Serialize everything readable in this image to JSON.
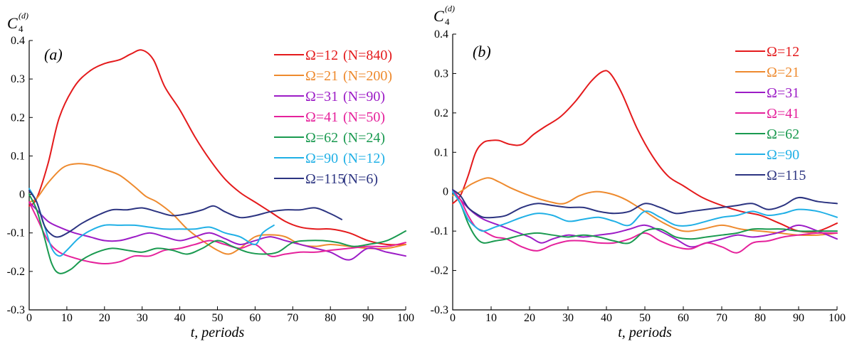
{
  "chart_data": [
    {
      "type": "line",
      "panel_label": "(a)",
      "ylabel": {
        "main": "C",
        "sub": "4",
        "sup": "(d)"
      },
      "xlabel": "t, periods",
      "xlim": [
        0,
        100
      ],
      "ylim": [
        -0.3,
        0.4
      ],
      "xticks": [
        "0",
        "10",
        "20",
        "30",
        "40",
        "50",
        "60",
        "70",
        "80",
        "90",
        "100"
      ],
      "yticks": [
        "-0.3",
        "-0.2",
        "-0.1",
        "0",
        "0.1",
        "0.2",
        "0.3",
        "0.4"
      ],
      "grid": false,
      "legend": "top-right",
      "series": [
        {
          "name": "Ω=12",
          "extra": "(N=840)",
          "color": "#e41a1c",
          "x": [
            0,
            2,
            5,
            8,
            12,
            16,
            20,
            24,
            27,
            30,
            33,
            36,
            40,
            44,
            48,
            52,
            56,
            60,
            64,
            68,
            72,
            76,
            80,
            85,
            90,
            95,
            100
          ],
          "y": [
            -0.03,
            -0.01,
            0.08,
            0.2,
            0.28,
            0.32,
            0.34,
            0.35,
            0.365,
            0.375,
            0.35,
            0.28,
            0.22,
            0.15,
            0.09,
            0.04,
            0.005,
            -0.02,
            -0.045,
            -0.07,
            -0.085,
            -0.09,
            -0.09,
            -0.1,
            -0.12,
            -0.13,
            -0.13
          ]
        },
        {
          "name": "Ω=21",
          "extra": "(N=200)",
          "color": "#ee8a2e",
          "x": [
            0,
            2,
            5,
            9,
            13,
            17,
            20,
            24,
            28,
            31,
            34,
            38,
            42,
            46,
            50,
            53,
            56,
            60,
            64,
            68,
            72,
            76,
            80,
            85,
            90,
            95,
            100
          ],
          "y": [
            -0.02,
            -0.01,
            0.03,
            0.07,
            0.08,
            0.075,
            0.065,
            0.05,
            0.02,
            -0.005,
            -0.02,
            -0.05,
            -0.09,
            -0.12,
            -0.145,
            -0.155,
            -0.14,
            -0.11,
            -0.105,
            -0.11,
            -0.13,
            -0.135,
            -0.13,
            -0.135,
            -0.14,
            -0.14,
            -0.13
          ]
        },
        {
          "name": "Ω=31",
          "extra": "(N=90)",
          "color": "#9c1cc6",
          "x": [
            0,
            2,
            5,
            8,
            12,
            16,
            20,
            24,
            28,
            32,
            36,
            40,
            44,
            48,
            52,
            56,
            60,
            64,
            68,
            72,
            76,
            80,
            85,
            90,
            95,
            100
          ],
          "y": [
            -0.02,
            -0.04,
            -0.07,
            -0.085,
            -0.1,
            -0.11,
            -0.12,
            -0.12,
            -0.11,
            -0.1,
            -0.11,
            -0.12,
            -0.11,
            -0.1,
            -0.115,
            -0.13,
            -0.12,
            -0.11,
            -0.12,
            -0.13,
            -0.14,
            -0.15,
            -0.17,
            -0.14,
            -0.15,
            -0.16
          ]
        },
        {
          "name": "Ω=41",
          "extra": "(N=50)",
          "color": "#e5219b",
          "x": [
            0,
            2,
            5,
            8,
            12,
            16,
            20,
            24,
            28,
            32,
            36,
            40,
            44,
            48,
            52,
            56,
            60,
            64,
            68,
            72,
            76,
            80,
            85,
            90,
            95,
            100
          ],
          "y": [
            -0.02,
            -0.06,
            -0.12,
            -0.15,
            -0.165,
            -0.175,
            -0.18,
            -0.175,
            -0.16,
            -0.16,
            -0.145,
            -0.14,
            -0.13,
            -0.12,
            -0.13,
            -0.14,
            -0.13,
            -0.16,
            -0.155,
            -0.15,
            -0.15,
            -0.145,
            -0.14,
            -0.135,
            -0.135,
            -0.125
          ]
        },
        {
          "name": "Ω=62",
          "extra": "(N=24)",
          "color": "#1a9a50",
          "x": [
            0,
            2,
            4,
            6,
            8,
            11,
            14,
            18,
            22,
            26,
            30,
            34,
            38,
            42,
            46,
            50,
            54,
            58,
            62,
            66,
            70,
            74,
            78,
            82,
            86,
            90,
            95,
            100
          ],
          "y": [
            0.0,
            -0.04,
            -0.11,
            -0.18,
            -0.205,
            -0.195,
            -0.17,
            -0.15,
            -0.14,
            -0.145,
            -0.15,
            -0.14,
            -0.145,
            -0.155,
            -0.14,
            -0.12,
            -0.135,
            -0.15,
            -0.155,
            -0.15,
            -0.125,
            -0.12,
            -0.12,
            -0.125,
            -0.135,
            -0.13,
            -0.12,
            -0.095
          ]
        },
        {
          "name": "Ω=90",
          "extra": "(N=12)",
          "color": "#20b0e6",
          "x": [
            0,
            2,
            4,
            6,
            8,
            10,
            13,
            16,
            20,
            24,
            28,
            32,
            36,
            40,
            44,
            48,
            52,
            56,
            60,
            62,
            65
          ],
          "y": [
            0.015,
            -0.02,
            -0.08,
            -0.14,
            -0.16,
            -0.145,
            -0.115,
            -0.095,
            -0.08,
            -0.08,
            -0.08,
            -0.085,
            -0.09,
            -0.09,
            -0.09,
            -0.085,
            -0.1,
            -0.11,
            -0.13,
            -0.1,
            -0.08
          ]
        },
        {
          "name": "Ω=115",
          "extra": "(N=6)",
          "color": "#2c3481",
          "x": [
            0,
            2,
            4,
            6,
            8,
            11,
            14,
            18,
            22,
            26,
            30,
            34,
            38,
            42,
            46,
            49,
            52,
            56,
            60,
            64,
            68,
            72,
            76,
            80,
            83
          ],
          "y": [
            0.01,
            -0.02,
            -0.08,
            -0.105,
            -0.11,
            -0.095,
            -0.075,
            -0.055,
            -0.04,
            -0.04,
            -0.035,
            -0.045,
            -0.055,
            -0.05,
            -0.04,
            -0.03,
            -0.045,
            -0.06,
            -0.055,
            -0.045,
            -0.04,
            -0.04,
            -0.035,
            -0.05,
            -0.065
          ]
        }
      ]
    },
    {
      "type": "line",
      "panel_label": "(b)",
      "ylabel": {
        "main": "C",
        "sub": "4",
        "sup": "(d)"
      },
      "xlabel": "t, periods",
      "xlim": [
        0,
        100
      ],
      "ylim": [
        -0.3,
        0.4
      ],
      "xticks": [
        "0",
        "10",
        "20",
        "30",
        "40",
        "50",
        "60",
        "70",
        "80",
        "90",
        "100"
      ],
      "yticks": [
        "-0.3",
        "-0.2",
        "-0.1",
        "0",
        "0.1",
        "0.2",
        "0.3",
        "0.4"
      ],
      "grid": false,
      "legend": "top-right",
      "series": [
        {
          "name": "Ω=12",
          "color": "#e41a1c",
          "x": [
            0,
            2,
            4,
            6,
            8,
            10,
            12,
            15,
            18,
            21,
            24,
            28,
            32,
            36,
            39,
            41,
            44,
            48,
            52,
            56,
            60,
            65,
            70,
            75,
            80,
            85,
            90,
            95,
            100
          ],
          "y": [
            -0.03,
            -0.01,
            0.04,
            0.1,
            0.125,
            0.13,
            0.13,
            0.12,
            0.12,
            0.145,
            0.165,
            0.19,
            0.23,
            0.28,
            0.305,
            0.3,
            0.25,
            0.16,
            0.09,
            0.04,
            0.015,
            -0.015,
            -0.035,
            -0.05,
            -0.06,
            -0.08,
            -0.1,
            -0.1,
            -0.08
          ]
        },
        {
          "name": "Ω=21",
          "color": "#ee8a2e",
          "x": [
            0,
            2,
            5,
            9,
            12,
            15,
            20,
            25,
            29,
            33,
            37,
            41,
            45,
            50,
            55,
            60,
            65,
            70,
            75,
            80,
            85,
            90,
            95,
            100
          ],
          "y": [
            -0.01,
            0.0,
            0.02,
            0.035,
            0.025,
            0.01,
            -0.01,
            -0.025,
            -0.03,
            -0.01,
            0.0,
            -0.005,
            -0.02,
            -0.05,
            -0.08,
            -0.1,
            -0.095,
            -0.085,
            -0.095,
            -0.1,
            -0.105,
            -0.11,
            -0.11,
            -0.105
          ]
        },
        {
          "name": "Ω=31",
          "color": "#9c1cc6",
          "x": [
            0,
            2,
            5,
            8,
            12,
            16,
            20,
            23,
            26,
            30,
            34,
            38,
            42,
            46,
            50,
            54,
            58,
            62,
            66,
            70,
            74,
            78,
            82,
            86,
            90,
            95,
            100
          ],
          "y": [
            0.005,
            -0.02,
            -0.05,
            -0.07,
            -0.085,
            -0.1,
            -0.115,
            -0.13,
            -0.12,
            -0.11,
            -0.115,
            -0.11,
            -0.105,
            -0.095,
            -0.085,
            -0.1,
            -0.12,
            -0.14,
            -0.13,
            -0.12,
            -0.11,
            -0.115,
            -0.11,
            -0.1,
            -0.085,
            -0.1,
            -0.12
          ]
        },
        {
          "name": "Ω=41",
          "color": "#e5219b",
          "x": [
            0,
            2,
            4,
            6,
            8,
            11,
            14,
            18,
            22,
            26,
            30,
            34,
            38,
            42,
            46,
            50,
            54,
            58,
            62,
            66,
            70,
            74,
            78,
            82,
            86,
            90,
            95,
            100
          ],
          "y": [
            0.0,
            -0.02,
            -0.06,
            -0.09,
            -0.1,
            -0.115,
            -0.12,
            -0.14,
            -0.15,
            -0.135,
            -0.125,
            -0.125,
            -0.13,
            -0.13,
            -0.12,
            -0.105,
            -0.125,
            -0.14,
            -0.145,
            -0.13,
            -0.14,
            -0.155,
            -0.13,
            -0.125,
            -0.115,
            -0.11,
            -0.105,
            -0.105
          ]
        },
        {
          "name": "Ω=62",
          "color": "#1a9a50",
          "x": [
            0,
            2,
            4,
            6,
            8,
            11,
            14,
            18,
            22,
            26,
            30,
            34,
            38,
            42,
            46,
            50,
            54,
            58,
            62,
            66,
            70,
            74,
            78,
            82,
            86,
            90,
            95,
            100
          ],
          "y": [
            0.0,
            -0.03,
            -0.08,
            -0.115,
            -0.13,
            -0.125,
            -0.12,
            -0.11,
            -0.105,
            -0.11,
            -0.115,
            -0.11,
            -0.115,
            -0.125,
            -0.13,
            -0.1,
            -0.095,
            -0.115,
            -0.12,
            -0.115,
            -0.11,
            -0.105,
            -0.095,
            -0.095,
            -0.095,
            -0.1,
            -0.1,
            -0.1
          ]
        },
        {
          "name": "Ω=90",
          "color": "#20b0e6",
          "x": [
            0,
            2,
            4,
            6,
            8,
            11,
            14,
            18,
            22,
            26,
            30,
            34,
            38,
            42,
            46,
            50,
            54,
            58,
            62,
            66,
            70,
            74,
            78,
            82,
            86,
            90,
            95,
            100
          ],
          "y": [
            0.0,
            -0.03,
            -0.07,
            -0.09,
            -0.1,
            -0.09,
            -0.08,
            -0.065,
            -0.055,
            -0.06,
            -0.075,
            -0.07,
            -0.065,
            -0.075,
            -0.085,
            -0.05,
            -0.065,
            -0.085,
            -0.085,
            -0.075,
            -0.065,
            -0.06,
            -0.05,
            -0.06,
            -0.055,
            -0.045,
            -0.05,
            -0.065
          ]
        },
        {
          "name": "Ω=115",
          "color": "#2c3481",
          "x": [
            0,
            2,
            4,
            6,
            8,
            11,
            14,
            18,
            22,
            26,
            30,
            34,
            38,
            42,
            46,
            50,
            54,
            58,
            62,
            66,
            70,
            74,
            78,
            82,
            86,
            90,
            95,
            100
          ],
          "y": [
            0.005,
            -0.01,
            -0.04,
            -0.055,
            -0.065,
            -0.065,
            -0.06,
            -0.04,
            -0.03,
            -0.035,
            -0.04,
            -0.04,
            -0.05,
            -0.055,
            -0.05,
            -0.03,
            -0.04,
            -0.055,
            -0.05,
            -0.045,
            -0.04,
            -0.035,
            -0.03,
            -0.045,
            -0.035,
            -0.015,
            -0.025,
            -0.03
          ]
        }
      ]
    }
  ]
}
